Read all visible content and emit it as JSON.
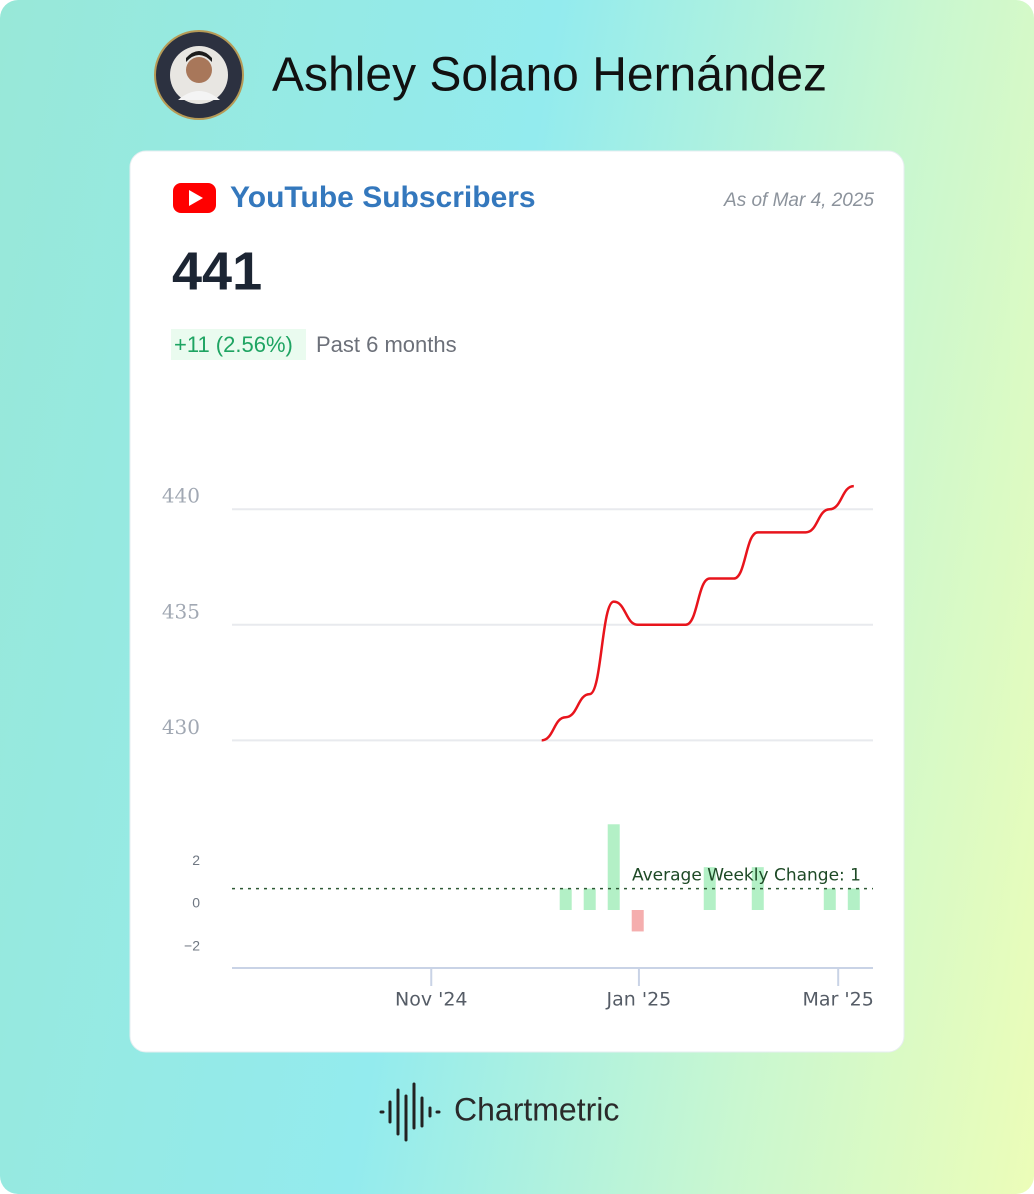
{
  "header": {
    "name": "Ashley Solano Hernández"
  },
  "card": {
    "title": "YouTube Subscribers",
    "as_of": "As of Mar 4, 2025",
    "total": 441,
    "change": "+11 (2.56%)",
    "period": "Past 6 months"
  },
  "chart_data": [
    {
      "type": "line",
      "x": [
        0,
        1,
        2,
        3,
        4,
        5,
        6,
        7,
        8,
        9,
        10,
        11,
        12,
        13
      ],
      "values": [
        430,
        431,
        432,
        436,
        435,
        435,
        435,
        437,
        437,
        439,
        439,
        439,
        440,
        441
      ],
      "color": "#e8141c",
      "xlim": [
        -12.9,
        13.8
      ],
      "ylim": [
        428.5,
        442
      ],
      "yticks": [
        430,
        435,
        440
      ],
      "grid": true
    },
    {
      "type": "bar",
      "x": [
        1,
        2,
        3,
        4,
        5,
        6,
        7,
        8,
        9,
        10,
        11,
        12,
        13
      ],
      "values": [
        1,
        1,
        4,
        -1,
        0,
        0,
        2,
        0,
        2,
        0,
        0,
        1,
        1
      ],
      "positive_color": "#b3f0c6",
      "negative_color": "#f5aeae",
      "xlim": [
        -12.9,
        13.8
      ],
      "ylim": [
        -2.8,
        4.2
      ],
      "yticks": [
        {
          "value": -2,
          "label": "−2"
        },
        0,
        2
      ],
      "xticks": [
        {
          "value": -4.6,
          "label": "Nov '24"
        },
        {
          "value": 4.05,
          "label": "Jan '25"
        },
        {
          "value": 12.35,
          "label": "Mar '25"
        }
      ],
      "average": {
        "value": 1,
        "label": "Average Weekly Change: 1"
      }
    }
  ],
  "footer": {
    "brand": "Chartmetric"
  }
}
